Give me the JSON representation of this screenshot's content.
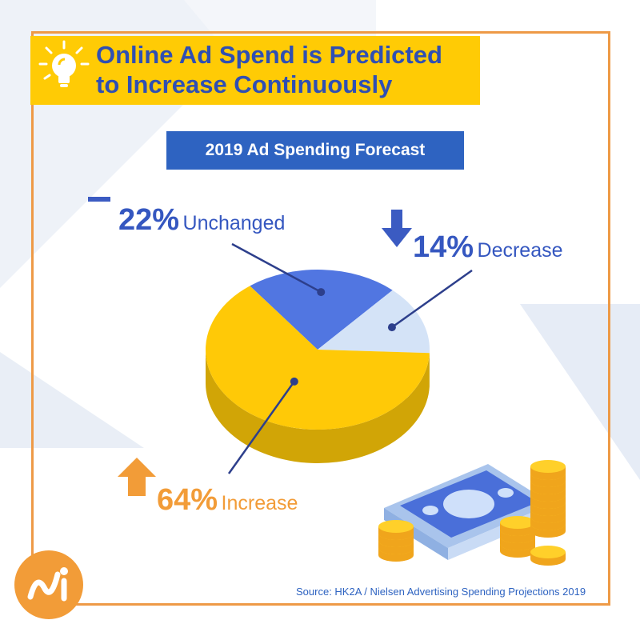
{
  "title_lines": [
    "Online Ad Spend is Predicted",
    "to Increase Continuously"
  ],
  "chart_data": {
    "type": "pie",
    "title": "2019 Ad Spending Forecast",
    "slices": [
      {
        "label": "Unchanged",
        "value": 22,
        "display": "22%",
        "color": "#5176e1"
      },
      {
        "label": "Decrease",
        "value": 14,
        "display": "14%",
        "color": "#d4e3f7"
      },
      {
        "label": "Increase",
        "value": 64,
        "display": "64%",
        "color": "#ffc907"
      }
    ]
  },
  "source": "Source: HK2A / Nielsen Advertising Spending Projections 2019",
  "colors": {
    "accent_orange": "#ee9a46",
    "banner_yellow": "#ffcb05",
    "title_blue": "#2f4fb3",
    "subtitle_blue": "#2e63c1"
  },
  "icons": [
    "lightbulb-icon",
    "minus-icon",
    "arrow-down-icon",
    "arrow-up-icon",
    "money-stack-icon",
    "coin-stack-icon",
    "logo-icon"
  ]
}
